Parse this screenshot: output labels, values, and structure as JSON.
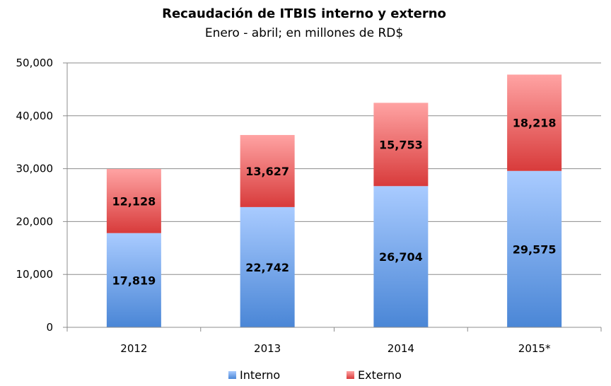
{
  "chart_data": {
    "type": "bar",
    "stacked": true,
    "title": "Recaudación de ITBIS interno y externo",
    "subtitle": "Enero - abril; en millones de RD$",
    "categories": [
      "2012",
      "2013",
      "2014",
      "2015*"
    ],
    "series": [
      {
        "name": "Interno",
        "values": [
          17819,
          22742,
          26704,
          29575
        ],
        "color": "#4a86d6",
        "color_light": "#a9cbff",
        "labels": [
          "17,819",
          "22,742",
          "26,704",
          "29,575"
        ]
      },
      {
        "name": "Externo",
        "values": [
          12128,
          13627,
          15753,
          18218
        ],
        "color": "#d83b3b",
        "color_light": "#ffa3a3",
        "labels": [
          "12,128",
          "13,627",
          "15,753",
          "18,218"
        ]
      }
    ],
    "ylim": [
      0,
      50000
    ],
    "yticks": [
      0,
      10000,
      20000,
      30000,
      40000,
      50000
    ],
    "ytick_labels": [
      "0",
      "10,000",
      "20,000",
      "30,000",
      "40,000",
      "50,000"
    ],
    "grid": true,
    "legend_position": "bottom"
  }
}
